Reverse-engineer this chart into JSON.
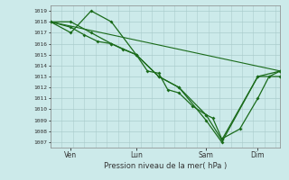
{
  "background_color": "#cceaea",
  "grid_color": "#aacccc",
  "line_color": "#1a6b1a",
  "xlabel_text": "Pression niveau de la mer( hPa )",
  "ylim": [
    1006.5,
    1019.5
  ],
  "yticks": [
    1007,
    1008,
    1009,
    1010,
    1011,
    1012,
    1013,
    1014,
    1015,
    1016,
    1017,
    1018,
    1019
  ],
  "xlim": [
    0,
    10.2
  ],
  "day_labels": [
    "Ven",
    "Lun",
    "Sam",
    "Dim"
  ],
  "day_positions": [
    0.9,
    3.8,
    6.9,
    9.2
  ],
  "straight_line_x": [
    0,
    10.2
  ],
  "straight_line_y": [
    1018,
    1013.5
  ],
  "series1_x": [
    0,
    0.9,
    1.8,
    2.7,
    3.8,
    4.8,
    5.7,
    6.9,
    7.6,
    9.2,
    10.2
  ],
  "series1_y": [
    1018,
    1018,
    1017,
    1016,
    1015,
    1013,
    1012,
    1009,
    1007,
    1013,
    1013
  ],
  "series2_x": [
    0,
    0.9,
    1.8,
    2.7,
    3.8,
    4.8,
    5.7,
    6.9,
    7.6,
    9.2,
    10.2
  ],
  "series2_y": [
    1018,
    1017,
    1019,
    1018,
    1015,
    1013,
    1012,
    1009.5,
    1007.2,
    1013,
    1013.5
  ],
  "series3_x": [
    0,
    0.9,
    1.5,
    2.1,
    2.7,
    3.2,
    3.8,
    4.3,
    4.8,
    5.2,
    5.7,
    6.3,
    6.9,
    7.2,
    7.6,
    8.4,
    9.2,
    9.7,
    10.2
  ],
  "series3_y": [
    1018,
    1017.5,
    1016.8,
    1016.2,
    1016,
    1015.5,
    1015,
    1013.5,
    1013.3,
    1011.8,
    1011.5,
    1010.3,
    1009.5,
    1009.2,
    1007.3,
    1008.2,
    1011.0,
    1013,
    1013.5
  ]
}
